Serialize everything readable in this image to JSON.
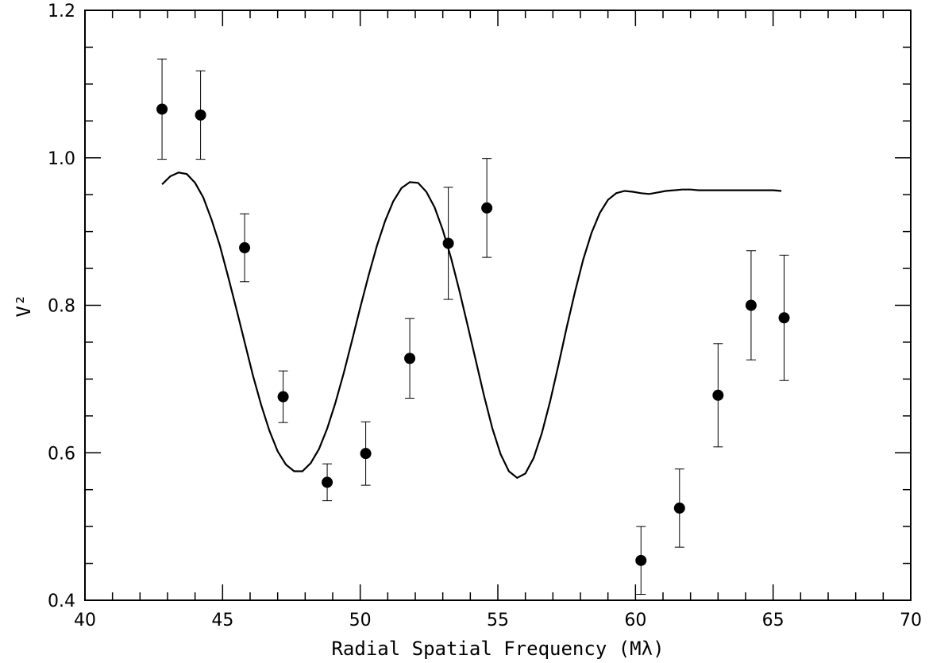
{
  "chart_data": {
    "type": "scatter",
    "xlabel": "Radial Spatial Frequency (Mλ)",
    "ylabel": "V²",
    "xlim": [
      40,
      70
    ],
    "ylim": [
      0.4,
      1.2
    ],
    "x_ticks": [
      40,
      45,
      50,
      55,
      60,
      65,
      70
    ],
    "x_tick_labels": [
      "40",
      "45",
      "50",
      "55",
      "60",
      "65",
      "70"
    ],
    "y_ticks": [
      0.4,
      0.6,
      0.8,
      1.0,
      1.2
    ],
    "y_tick_labels": [
      "0.4",
      "0.6",
      "0.8",
      "1.0",
      "1.2"
    ],
    "grid": false,
    "series": [
      {
        "kind": "points-with-errorbars",
        "x": [
          42.8,
          44.2,
          45.8,
          47.2,
          48.8,
          50.2,
          51.8,
          53.2,
          54.6,
          60.2,
          61.6,
          63.0,
          64.2,
          65.4
        ],
        "y": [
          1.066,
          1.058,
          0.878,
          0.676,
          0.56,
          0.599,
          0.728,
          0.884,
          0.932,
          0.454,
          0.525,
          0.678,
          0.8,
          0.783
        ],
        "err": [
          0.068,
          0.06,
          0.046,
          0.035,
          0.025,
          0.043,
          0.054,
          0.076,
          0.067,
          0.046,
          0.053,
          0.07,
          0.074,
          0.085
        ]
      },
      {
        "kind": "model-curve",
        "x": [
          42.8,
          43.1,
          43.4,
          43.7,
          44.0,
          44.3,
          44.6,
          44.9,
          45.2,
          45.5,
          45.8,
          46.1,
          46.4,
          46.7,
          47.0,
          47.3,
          47.6,
          47.9,
          48.2,
          48.5,
          48.8,
          49.1,
          49.4,
          49.7,
          50.0,
          50.3,
          50.6,
          50.9,
          51.2,
          51.5,
          51.8,
          52.1,
          52.4,
          52.7,
          53.0,
          53.3,
          53.6,
          53.9,
          54.2,
          54.5,
          54.8,
          55.1,
          55.4,
          55.7,
          56.0,
          56.3,
          56.6,
          56.9,
          57.2,
          57.5,
          57.8,
          58.1,
          58.4,
          58.7,
          59.0,
          59.3,
          59.6,
          59.9,
          60.2,
          60.5,
          60.8,
          61.1,
          61.4,
          61.7,
          62.0,
          62.3,
          62.6,
          62.9,
          63.2,
          63.5,
          63.8,
          64.1,
          64.4,
          64.7,
          65.0,
          65.3
        ],
        "y": [
          0.964,
          0.975,
          0.98,
          0.978,
          0.966,
          0.946,
          0.916,
          0.881,
          0.839,
          0.795,
          0.75,
          0.705,
          0.665,
          0.63,
          0.602,
          0.584,
          0.575,
          0.575,
          0.586,
          0.605,
          0.633,
          0.668,
          0.708,
          0.752,
          0.797,
          0.84,
          0.88,
          0.914,
          0.941,
          0.959,
          0.967,
          0.966,
          0.954,
          0.933,
          0.902,
          0.864,
          0.82,
          0.773,
          0.725,
          0.677,
          0.633,
          0.598,
          0.575,
          0.566,
          0.572,
          0.593,
          0.627,
          0.67,
          0.719,
          0.77,
          0.818,
          0.862,
          0.898,
          0.925,
          0.943,
          0.952,
          0.955,
          0.954,
          0.952,
          0.951,
          0.953,
          0.955,
          0.956,
          0.957,
          0.957,
          0.956,
          0.956,
          0.956,
          0.956,
          0.956,
          0.956,
          0.956,
          0.956,
          0.956,
          0.956,
          0.955
        ]
      }
    ]
  }
}
